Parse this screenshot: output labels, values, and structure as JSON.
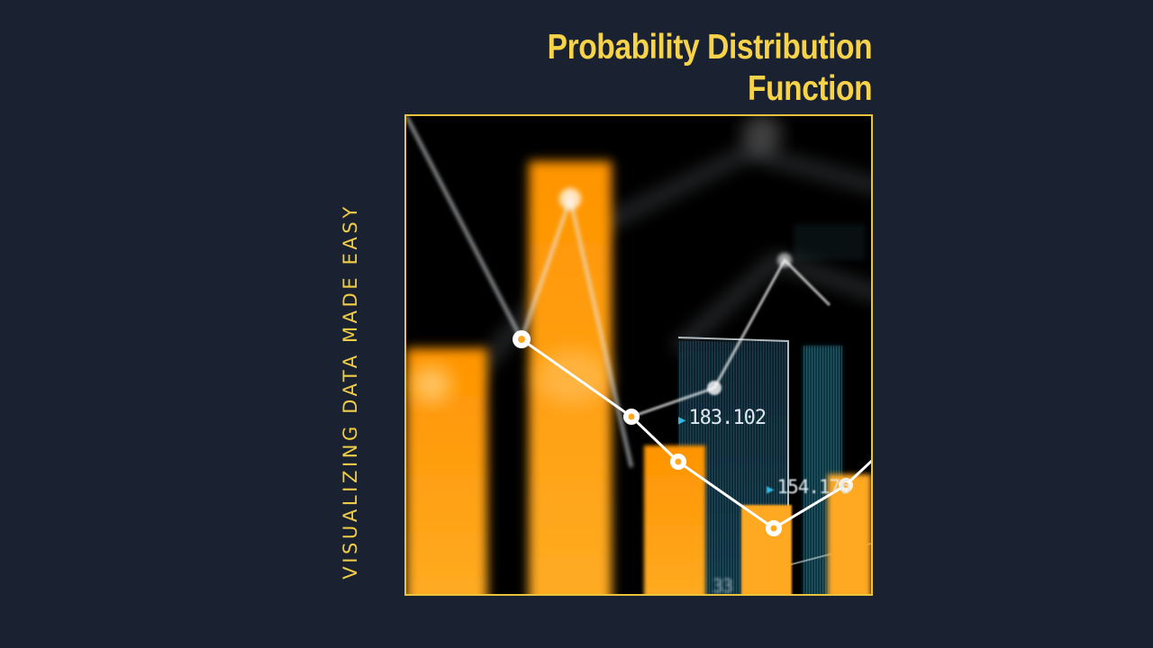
{
  "title": {
    "line1": "Probability Distribution",
    "line2": "Function"
  },
  "tagline": "VISUALIZING DATA MADE EASY",
  "image": {
    "readouts": [
      "183.102",
      "154.176",
      "33"
    ]
  },
  "colors": {
    "background": "#1a2130",
    "accent": "#f7d34a",
    "bar": "#ff9f0a",
    "panel": "#0b2d3c",
    "marker": "#33b9e0"
  }
}
